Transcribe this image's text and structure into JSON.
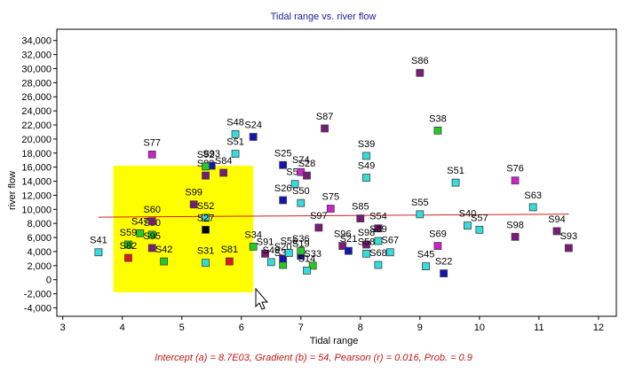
{
  "chart_data": {
    "type": "scatter",
    "title": "Tidal range vs. river flow",
    "xlabel": "Tidal range",
    "ylabel": "river flow",
    "xlim": [
      2.9,
      12.3
    ],
    "ylim": [
      -5200,
      35600
    ],
    "xticks": [
      3,
      4,
      5,
      6,
      7,
      8,
      9,
      10,
      11,
      12
    ],
    "xtick_labels": [
      "3",
      "4",
      "5",
      "6",
      "7",
      "8",
      "9",
      "10",
      "11",
      "12"
    ],
    "yticks": [
      -4000,
      -2000,
      0,
      2000,
      4000,
      6000,
      8000,
      10000,
      12000,
      14000,
      16000,
      18000,
      20000,
      22000,
      24000,
      26000,
      28000,
      30000,
      32000,
      34000
    ],
    "ytick_labels": [
      "-4,000",
      "-2,000",
      "0",
      "2,000",
      "4,000",
      "6,000",
      "8,000",
      "10,000",
      "12,000",
      "14,000",
      "16,000",
      "18,000",
      "20,000",
      "22,000",
      "24,000",
      "26,000",
      "28,000",
      "30,000",
      "32,000",
      "34,000"
    ],
    "grid": false,
    "colors": {
      "cyan": "#33dddd",
      "blue": "#1414b4",
      "purple": "#7a1a7a",
      "green": "#22cc22",
      "red": "#e01818",
      "magenta": "#cc22cc",
      "black": "#000000",
      "trend": "#d02020",
      "selection": "#ffff00",
      "title": "#1a1a9a",
      "stats": "#c01818"
    },
    "selection": {
      "x0": 3.85,
      "x1": 6.2,
      "y0": -1800,
      "y1": 16200
    },
    "trendline": {
      "x0": 3.6,
      "x1": 11.5,
      "intercept": 8700,
      "gradient": 54
    },
    "stats_text": "Intercept (a) = 8.7E03, Gradient (b) = 54, Pearson (r) = 0.016, Prob. = 0.9",
    "points": [
      {
        "label": "S41",
        "x": 3.6,
        "y": 3900,
        "color": "cyan"
      },
      {
        "label": "S59",
        "x": 4.1,
        "y": 5000,
        "color": "green"
      },
      {
        "label": "S82",
        "x": 4.1,
        "y": 3100,
        "color": "red"
      },
      {
        "label": "S47",
        "x": 4.3,
        "y": 6600,
        "color": "green"
      },
      {
        "label": "S90",
        "x": 4.5,
        "y": 6400,
        "color": "green"
      },
      {
        "label": "S60",
        "x": 4.5,
        "y": 8300,
        "color": "purple"
      },
      {
        "label": "S95",
        "x": 4.5,
        "y": 4500,
        "color": "purple"
      },
      {
        "label": "S42",
        "x": 4.7,
        "y": 2600,
        "color": "green"
      },
      {
        "label": "S77",
        "x": 4.5,
        "y": 17800,
        "color": "magenta"
      },
      {
        "label": "S99",
        "x": 5.2,
        "y": 10700,
        "color": "purple"
      },
      {
        "label": "S52",
        "x": 5.4,
        "y": 8800,
        "color": "cyan"
      },
      {
        "label": "S27",
        "x": 5.4,
        "y": 7100,
        "color": "black"
      },
      {
        "label": "S31",
        "x": 5.4,
        "y": 2400,
        "color": "cyan"
      },
      {
        "label": "S81",
        "x": 5.8,
        "y": 2600,
        "color": "red"
      },
      {
        "label": "S83",
        "x": 5.4,
        "y": 14800,
        "color": "purple"
      },
      {
        "label": "S93",
        "x": 5.5,
        "y": 16200,
        "color": "blue"
      },
      {
        "label": "S92",
        "x": 5.4,
        "y": 16100,
        "color": "green"
      },
      {
        "label": "S84",
        "x": 5.7,
        "y": 15200,
        "color": "purple"
      },
      {
        "label": "S48",
        "x": 5.9,
        "y": 20700,
        "color": "cyan"
      },
      {
        "label": "S51",
        "x": 5.9,
        "y": 17900,
        "color": "cyan"
      },
      {
        "label": "S24",
        "x": 6.2,
        "y": 20300,
        "color": "blue"
      },
      {
        "label": "S34",
        "x": 6.2,
        "y": 4700,
        "color": "green"
      },
      {
        "label": "S91",
        "x": 6.4,
        "y": 3700,
        "color": "purple"
      },
      {
        "label": "S49",
        "x": 6.5,
        "y": 2500,
        "color": "cyan"
      },
      {
        "label": "S32",
        "x": 6.7,
        "y": 2100,
        "color": "green"
      },
      {
        "label": "S20",
        "x": 6.7,
        "y": 3000,
        "color": "blue"
      },
      {
        "label": "S56",
        "x": 6.8,
        "y": 3800,
        "color": "cyan"
      },
      {
        "label": "S19",
        "x": 7.0,
        "y": 3400,
        "color": "blue"
      },
      {
        "label": "S36",
        "x": 7.0,
        "y": 4100,
        "color": "green"
      },
      {
        "label": "S33",
        "x": 7.2,
        "y": 2000,
        "color": "green"
      },
      {
        "label": "S14",
        "x": 7.1,
        "y": 1300,
        "color": "cyan"
      },
      {
        "label": "S25",
        "x": 6.7,
        "y": 16300,
        "color": "blue"
      },
      {
        "label": "S53",
        "x": 6.9,
        "y": 13600,
        "color": "cyan"
      },
      {
        "label": "S74",
        "x": 7.0,
        "y": 15300,
        "color": "magenta"
      },
      {
        "label": "S28",
        "x": 7.1,
        "y": 14800,
        "color": "purple"
      },
      {
        "label": "S26",
        "x": 6.7,
        "y": 11300,
        "color": "blue"
      },
      {
        "label": "S50",
        "x": 7.0,
        "y": 10900,
        "color": "cyan"
      },
      {
        "label": "S97",
        "x": 7.3,
        "y": 7400,
        "color": "purple"
      },
      {
        "label": "S75",
        "x": 7.5,
        "y": 10100,
        "color": "magenta"
      },
      {
        "label": "S87",
        "x": 7.4,
        "y": 21500,
        "color": "purple"
      },
      {
        "label": "S96",
        "x": 7.7,
        "y": 4800,
        "color": "purple"
      },
      {
        "label": "S21",
        "x": 7.8,
        "y": 4100,
        "color": "blue"
      },
      {
        "label": "S85",
        "x": 8.0,
        "y": 8700,
        "color": "purple"
      },
      {
        "label": "S98",
        "x": 8.1,
        "y": 5000,
        "color": "purple"
      },
      {
        "label": "S54",
        "x": 8.3,
        "y": 7300,
        "color": "purple"
      },
      {
        "label": "S89",
        "x": 8.3,
        "y": 5500,
        "color": "cyan"
      },
      {
        "label": "S58",
        "x": 8.1,
        "y": 3700,
        "color": "cyan"
      },
      {
        "label": "S68",
        "x": 8.3,
        "y": 2100,
        "color": "cyan"
      },
      {
        "label": "S67",
        "x": 8.5,
        "y": 3900,
        "color": "cyan"
      },
      {
        "label": "S39",
        "x": 8.1,
        "y": 17600,
        "color": "cyan"
      },
      {
        "label": "S49",
        "x": 8.1,
        "y": 14500,
        "color": "cyan"
      },
      {
        "label": "S86",
        "x": 9.0,
        "y": 29400,
        "color": "purple"
      },
      {
        "label": "S38",
        "x": 9.3,
        "y": 21200,
        "color": "green"
      },
      {
        "label": "S55",
        "x": 9.0,
        "y": 9300,
        "color": "cyan"
      },
      {
        "label": "S69",
        "x": 9.3,
        "y": 4800,
        "color": "magenta"
      },
      {
        "label": "S45",
        "x": 9.1,
        "y": 1900,
        "color": "cyan"
      },
      {
        "label": "S22",
        "x": 9.4,
        "y": 900,
        "color": "blue"
      },
      {
        "label": "S51",
        "x": 9.6,
        "y": 13800,
        "color": "cyan"
      },
      {
        "label": "S40",
        "x": 9.8,
        "y": 7700,
        "color": "cyan"
      },
      {
        "label": "S57",
        "x": 10.0,
        "y": 7100,
        "color": "cyan"
      },
      {
        "label": "S76",
        "x": 10.6,
        "y": 14100,
        "color": "magenta"
      },
      {
        "label": "S63",
        "x": 10.9,
        "y": 10300,
        "color": "cyan"
      },
      {
        "label": "S98",
        "x": 10.6,
        "y": 6100,
        "color": "purple"
      },
      {
        "label": "S94",
        "x": 11.3,
        "y": 6900,
        "color": "purple"
      },
      {
        "label": "S93",
        "x": 11.5,
        "y": 4500,
        "color": "purple"
      }
    ]
  }
}
